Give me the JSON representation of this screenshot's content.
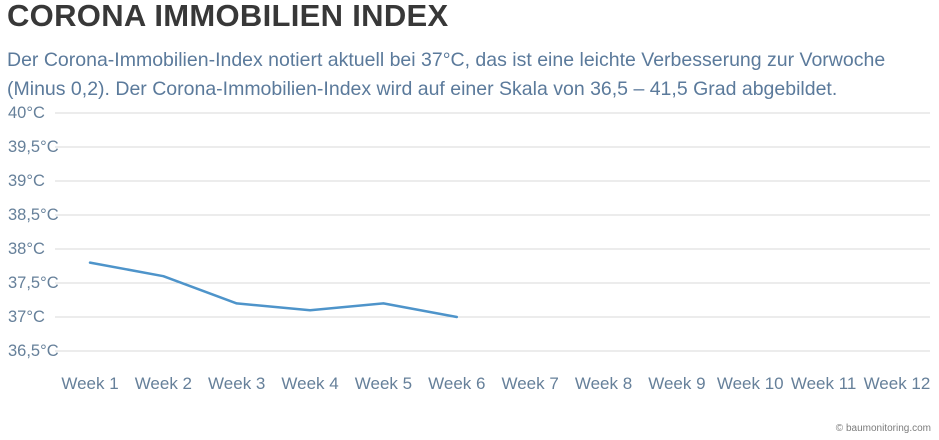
{
  "header": {
    "title": "CORONA IMMOBILIEN INDEX",
    "subtitle_line1": "Der Corona-Immobilien-Index notiert aktuell bei 37°C, das ist eine leichte Verbesserung zur Vorwoche",
    "subtitle_line2": "(Minus 0,2). Der Corona-Immobilien-Index wird auf einer Skala von 36,5 – 41,5 Grad abgebildet."
  },
  "chart_data": {
    "type": "line",
    "title": "CORONA IMMOBILIEN INDEX",
    "categories": [
      "Week 1",
      "Week 2",
      "Week 3",
      "Week 4",
      "Week 5",
      "Week 6",
      "Week 7",
      "Week 8",
      "Week 9",
      "Week 10",
      "Week 11",
      "Week 12"
    ],
    "series": [
      {
        "name": "Corona-Immobilien-Index",
        "values": [
          37.8,
          37.6,
          37.2,
          37.1,
          37.2,
          37.0,
          null,
          null,
          null,
          null,
          null,
          null
        ]
      }
    ],
    "y_ticks": [
      "40°C",
      "39,5°C",
      "39°C",
      "38,5°C",
      "38°C",
      "37,5°C",
      "37°C",
      "36,5°C"
    ],
    "y_tick_values": [
      40,
      39.5,
      39,
      38.5,
      38,
      37.5,
      37,
      36.5
    ],
    "ylim": [
      36.5,
      40
    ],
    "xlabel": "",
    "ylabel": "",
    "grid": true,
    "legend": "none",
    "line_color": "#4e94ca",
    "grid_color": "#dadada"
  },
  "footer": {
    "credit": "© baumonitoring.com"
  }
}
